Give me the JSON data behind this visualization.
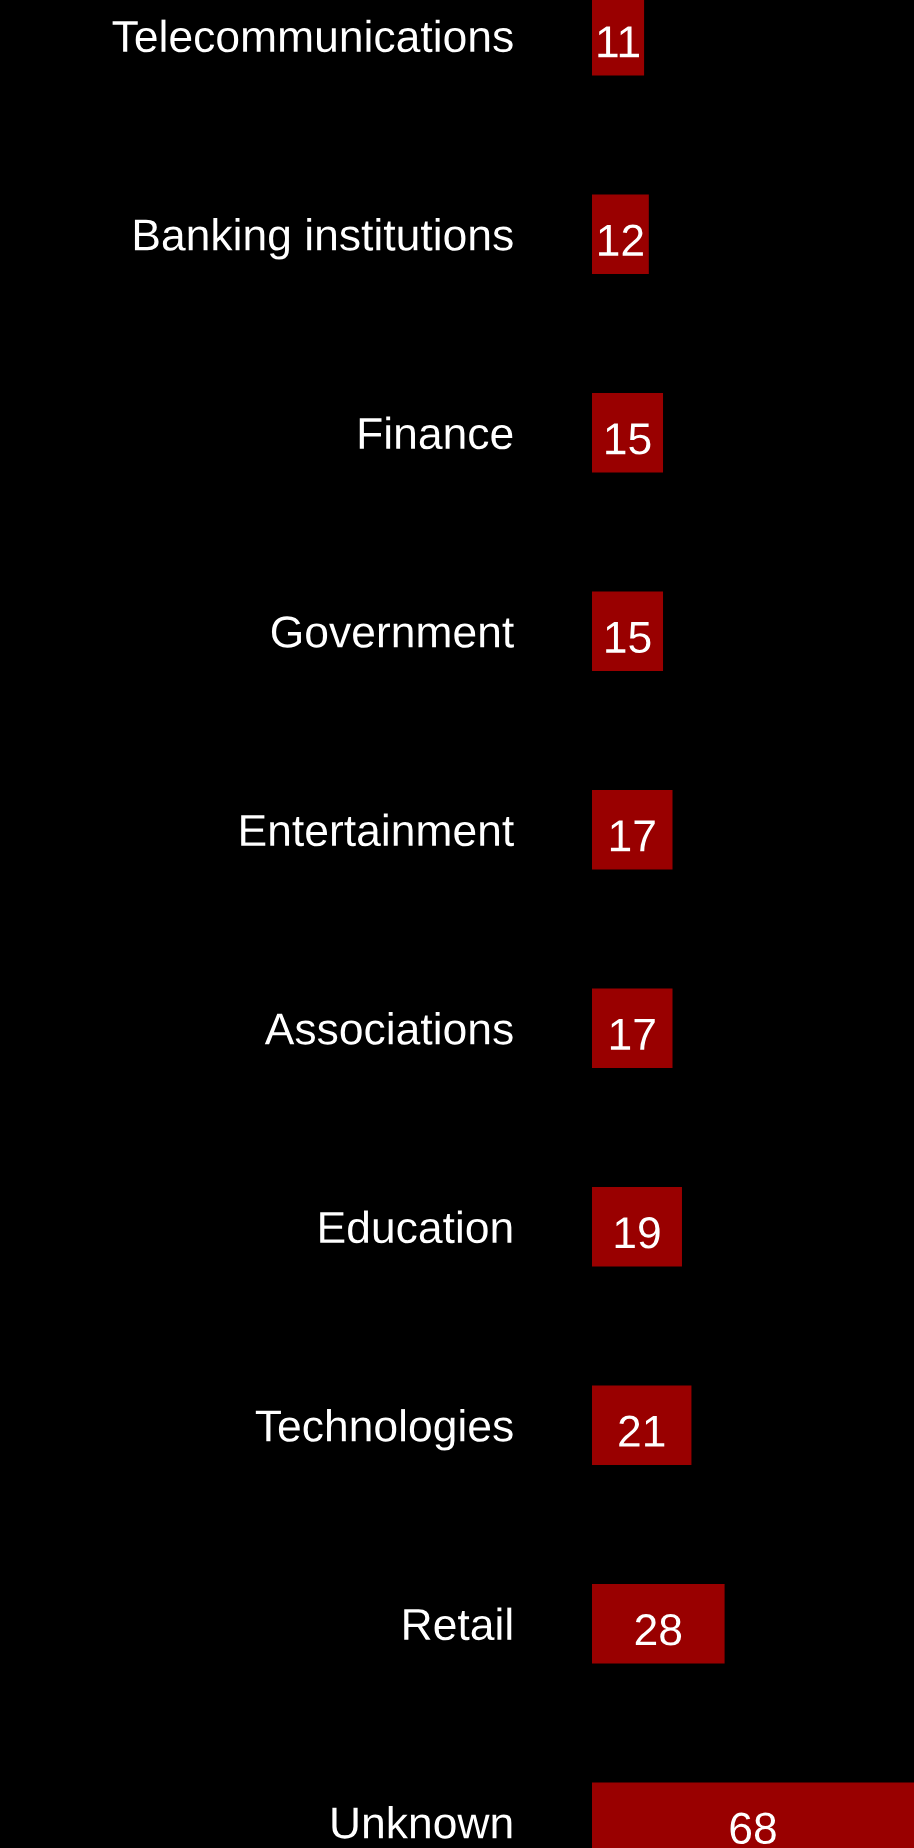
{
  "chart_data": {
    "type": "bar",
    "orientation": "horizontal",
    "categories": [
      "Telecommunications",
      "Banking institutions",
      "Finance",
      "Government",
      "Entertainment",
      "Associations",
      "Education",
      "Technologies",
      "Retail",
      "Unknown"
    ],
    "values": [
      11,
      12,
      15,
      15,
      17,
      17,
      19,
      21,
      28,
      68
    ],
    "color": "#990000",
    "data_labels": true,
    "grid": false,
    "legend": false
  }
}
